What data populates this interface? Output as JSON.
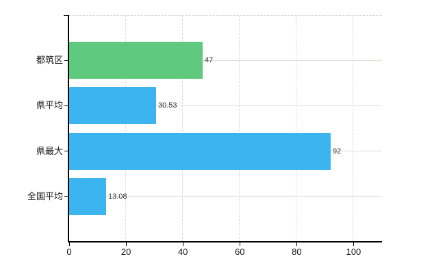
{
  "chart_data": {
    "type": "bar",
    "orientation": "horizontal",
    "title": "",
    "categories": [
      "都筑区",
      "県平均",
      "県最大",
      "全国平均"
    ],
    "values": [
      47,
      30.53,
      92,
      13.08
    ],
    "value_labels": [
      "47",
      "30.53",
      "92",
      "13.08"
    ],
    "bar_colors": [
      "#5fc97d",
      "#3cb4f0",
      "#3cb4f0",
      "#3cb4f0"
    ],
    "x_ticks": [
      "0",
      "20",
      "40",
      "60",
      "80",
      "100"
    ],
    "x_tick_values": [
      0,
      20,
      40,
      60,
      80,
      100
    ],
    "xlim": [
      0,
      110
    ],
    "xlabel": "",
    "ylabel": "",
    "legend": null,
    "grid": {
      "vertical": "dashed",
      "horizontal": "solid"
    },
    "colors": {
      "green_bar": "#5fc97d",
      "blue_bar": "#3cb4f0",
      "axis": "#000000",
      "gridline_vertical": "#d9d9d9",
      "gridline_horizontal": "#d6ded4",
      "background": "#ffffff",
      "tick_label": "#141414",
      "value_label": "#333333"
    }
  }
}
